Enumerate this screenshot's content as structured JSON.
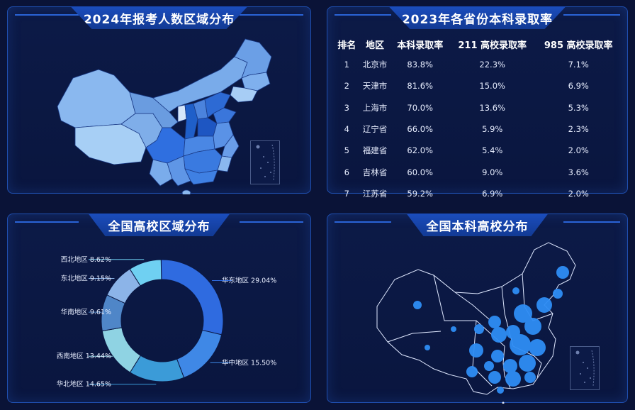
{
  "panels": {
    "applicants": {
      "title": "2024年报考人数区域分布"
    },
    "rates": {
      "title": "2023年各省份本科录取率",
      "headers": [
        "排名",
        "地区",
        "本科录取率",
        "211 高校录取率",
        "985 高校录取率"
      ],
      "rows": [
        [
          "1",
          "北京市",
          "83.8%",
          "22.3%",
          "7.1%"
        ],
        [
          "2",
          "天津市",
          "81.6%",
          "15.0%",
          "6.9%"
        ],
        [
          "3",
          "上海市",
          "70.0%",
          "13.6%",
          "5.3%"
        ],
        [
          "4",
          "辽宁省",
          "66.0%",
          "5.9%",
          "2.3%"
        ],
        [
          "5",
          "福建省",
          "62.0%",
          "5.4%",
          "2.0%"
        ],
        [
          "6",
          "吉林省",
          "60.0%",
          "9.0%",
          "3.6%"
        ],
        [
          "7",
          "江苏省",
          "59.2%",
          "6.9%",
          "2.0%"
        ]
      ]
    },
    "regions": {
      "title": "全国高校区域分布"
    },
    "universities": {
      "title": "全国本科高校分布"
    }
  },
  "chart_data": {
    "type": "pie",
    "title": "全国高校区域分布",
    "slices": [
      {
        "label": "华东地区",
        "value": 29.04,
        "display": "华东地区 29.04%",
        "color": "#2f6be0"
      },
      {
        "label": "华中地区",
        "value": 15.5,
        "display": "华中地区 15.50%",
        "color": "#3f88e6"
      },
      {
        "label": "华北地区",
        "value": 14.65,
        "display": "华北地区 14.65%",
        "color": "#3b9bd8"
      },
      {
        "label": "西南地区",
        "value": 13.44,
        "display": "西南地区 13.44%",
        "color": "#8fd3e3"
      },
      {
        "label": "华南地区",
        "value": 9.61,
        "display": "华南地区 9.61%",
        "color": "#4f86c8"
      },
      {
        "label": "东北地区",
        "value": 9.15,
        "display": "东北地区 9.15%",
        "color": "#8cb4e8"
      },
      {
        "label": "西北地区",
        "value": 8.62,
        "display": "西北地区 8.62%",
        "color": "#6fd0f2"
      }
    ]
  }
}
